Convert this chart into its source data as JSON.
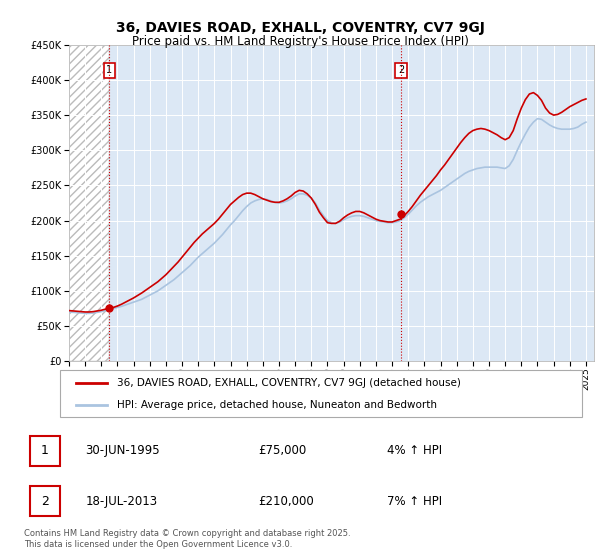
{
  "title": "36, DAVIES ROAD, EXHALL, COVENTRY, CV7 9GJ",
  "subtitle": "Price paid vs. HM Land Registry's House Price Index (HPI)",
  "legend_line1": "36, DAVIES ROAD, EXHALL, COVENTRY, CV7 9GJ (detached house)",
  "legend_line2": "HPI: Average price, detached house, Nuneaton and Bedworth",
  "transaction1_date": "30-JUN-1995",
  "transaction1_price": "£75,000",
  "transaction1_hpi": "4% ↑ HPI",
  "transaction1_year": 1995.5,
  "transaction1_value": 75000,
  "transaction2_date": "18-JUL-2013",
  "transaction2_price": "£210,000",
  "transaction2_hpi": "7% ↑ HPI",
  "transaction2_year": 2013.55,
  "transaction2_value": 210000,
  "ylim": [
    0,
    450000
  ],
  "xlim_start": 1993,
  "xlim_end": 2025.5,
  "plot_bg_color": "#dce8f5",
  "grid_color": "#ffffff",
  "red_line_color": "#cc0000",
  "blue_line_color": "#aac4e0",
  "vline_color": "#cc0000",
  "footnote": "Contains HM Land Registry data © Crown copyright and database right 2025.\nThis data is licensed under the Open Government Licence v3.0.",
  "hpi_years": [
    1993,
    1993.25,
    1993.5,
    1993.75,
    1994,
    1994.25,
    1994.5,
    1994.75,
    1995,
    1995.25,
    1995.5,
    1995.75,
    1996,
    1996.25,
    1996.5,
    1996.75,
    1997,
    1997.25,
    1997.5,
    1997.75,
    1998,
    1998.25,
    1998.5,
    1998.75,
    1999,
    1999.25,
    1999.5,
    1999.75,
    2000,
    2000.25,
    2000.5,
    2000.75,
    2001,
    2001.25,
    2001.5,
    2001.75,
    2002,
    2002.25,
    2002.5,
    2002.75,
    2003,
    2003.25,
    2003.5,
    2003.75,
    2004,
    2004.25,
    2004.5,
    2004.75,
    2005,
    2005.25,
    2005.5,
    2005.75,
    2006,
    2006.25,
    2006.5,
    2006.75,
    2007,
    2007.25,
    2007.5,
    2007.75,
    2008,
    2008.25,
    2008.5,
    2008.75,
    2009,
    2009.25,
    2009.5,
    2009.75,
    2010,
    2010.25,
    2010.5,
    2010.75,
    2011,
    2011.25,
    2011.5,
    2011.75,
    2012,
    2012.25,
    2012.5,
    2012.75,
    2013,
    2013.25,
    2013.5,
    2013.75,
    2014,
    2014.25,
    2014.5,
    2014.75,
    2015,
    2015.25,
    2015.5,
    2015.75,
    2016,
    2016.25,
    2016.5,
    2016.75,
    2017,
    2017.25,
    2017.5,
    2017.75,
    2018,
    2018.25,
    2018.5,
    2018.75,
    2019,
    2019.25,
    2019.5,
    2019.75,
    2020,
    2020.25,
    2020.5,
    2020.75,
    2021,
    2021.25,
    2021.5,
    2021.75,
    2022,
    2022.25,
    2022.5,
    2022.75,
    2023,
    2023.25,
    2023.5,
    2023.75,
    2024,
    2024.25,
    2024.5,
    2024.75,
    2025
  ],
  "hpi_values": [
    70000,
    69500,
    69000,
    68500,
    68000,
    68000,
    68500,
    69500,
    70500,
    72000,
    73500,
    75000,
    76500,
    78000,
    80000,
    82000,
    84000,
    86000,
    88000,
    91000,
    94000,
    97000,
    100000,
    104000,
    108000,
    112000,
    116000,
    121000,
    126000,
    131000,
    136000,
    142000,
    148000,
    153000,
    158000,
    163000,
    168000,
    174000,
    180000,
    187000,
    194000,
    200000,
    207000,
    214000,
    220000,
    225000,
    228000,
    230000,
    231000,
    230000,
    228000,
    226000,
    225000,
    226000,
    228000,
    231000,
    235000,
    238000,
    238000,
    236000,
    232000,
    225000,
    215000,
    207000,
    200000,
    197000,
    196000,
    198000,
    201000,
    204000,
    206000,
    207000,
    207000,
    206000,
    204000,
    202000,
    200000,
    199000,
    198000,
    197000,
    197000,
    198000,
    200000,
    204000,
    209000,
    215000,
    221000,
    226000,
    230000,
    234000,
    237000,
    240000,
    243000,
    247000,
    251000,
    255000,
    259000,
    263000,
    267000,
    270000,
    272000,
    274000,
    275000,
    276000,
    276000,
    276000,
    276000,
    275000,
    274000,
    278000,
    287000,
    300000,
    312000,
    323000,
    333000,
    340000,
    345000,
    344000,
    340000,
    336000,
    333000,
    331000,
    330000,
    330000,
    330000,
    331000,
    333000,
    337000,
    340000
  ],
  "price_years": [
    1993,
    1993.25,
    1993.5,
    1993.75,
    1994,
    1994.25,
    1994.5,
    1994.75,
    1995,
    1995.25,
    1995.5,
    1995.75,
    1996,
    1996.25,
    1996.5,
    1996.75,
    1997,
    1997.25,
    1997.5,
    1997.75,
    1998,
    1998.25,
    1998.5,
    1998.75,
    1999,
    1999.25,
    1999.5,
    1999.75,
    2000,
    2000.25,
    2000.5,
    2000.75,
    2001,
    2001.25,
    2001.5,
    2001.75,
    2002,
    2002.25,
    2002.5,
    2002.75,
    2003,
    2003.25,
    2003.5,
    2003.75,
    2004,
    2004.25,
    2004.5,
    2004.75,
    2005,
    2005.25,
    2005.5,
    2005.75,
    2006,
    2006.25,
    2006.5,
    2006.75,
    2007,
    2007.25,
    2007.5,
    2007.75,
    2008,
    2008.25,
    2008.5,
    2008.75,
    2009,
    2009.25,
    2009.5,
    2009.75,
    2010,
    2010.25,
    2010.5,
    2010.75,
    2011,
    2011.25,
    2011.5,
    2011.75,
    2012,
    2012.25,
    2012.5,
    2012.75,
    2013,
    2013.25,
    2013.5,
    2013.75,
    2014,
    2014.25,
    2014.5,
    2014.75,
    2015,
    2015.25,
    2015.5,
    2015.75,
    2016,
    2016.25,
    2016.5,
    2016.75,
    2017,
    2017.25,
    2017.5,
    2017.75,
    2018,
    2018.25,
    2018.5,
    2018.75,
    2019,
    2019.25,
    2019.5,
    2019.75,
    2020,
    2020.25,
    2020.5,
    2020.75,
    2021,
    2021.25,
    2021.5,
    2021.75,
    2022,
    2022.25,
    2022.5,
    2022.75,
    2023,
    2023.25,
    2023.5,
    2023.75,
    2024,
    2024.25,
    2024.5,
    2024.75,
    2025
  ],
  "price_values": [
    72000,
    71500,
    71000,
    70500,
    70000,
    70000,
    70500,
    71500,
    72500,
    74000,
    75000,
    76500,
    78500,
    81000,
    84000,
    87000,
    90000,
    93500,
    97000,
    101000,
    105000,
    109000,
    113000,
    118000,
    123000,
    129000,
    135000,
    141000,
    148000,
    155000,
    162000,
    169000,
    175000,
    181000,
    186000,
    191000,
    196000,
    202000,
    209000,
    216000,
    223000,
    228000,
    233000,
    237000,
    239000,
    239000,
    237000,
    234000,
    231000,
    229000,
    227000,
    226000,
    226000,
    228000,
    231000,
    235000,
    240000,
    243000,
    242000,
    238000,
    232000,
    223000,
    212000,
    204000,
    197000,
    196000,
    196000,
    199000,
    204000,
    208000,
    211000,
    213000,
    213000,
    211000,
    208000,
    205000,
    202000,
    200000,
    199000,
    198000,
    198000,
    200000,
    202000,
    207000,
    213000,
    220000,
    228000,
    236000,
    243000,
    250000,
    257000,
    264000,
    272000,
    279000,
    287000,
    295000,
    303000,
    311000,
    318000,
    324000,
    328000,
    330000,
    331000,
    330000,
    328000,
    325000,
    322000,
    318000,
    315000,
    318000,
    328000,
    345000,
    360000,
    372000,
    380000,
    382000,
    378000,
    371000,
    360000,
    353000,
    350000,
    351000,
    354000,
    358000,
    362000,
    365000,
    368000,
    371000,
    373000
  ]
}
